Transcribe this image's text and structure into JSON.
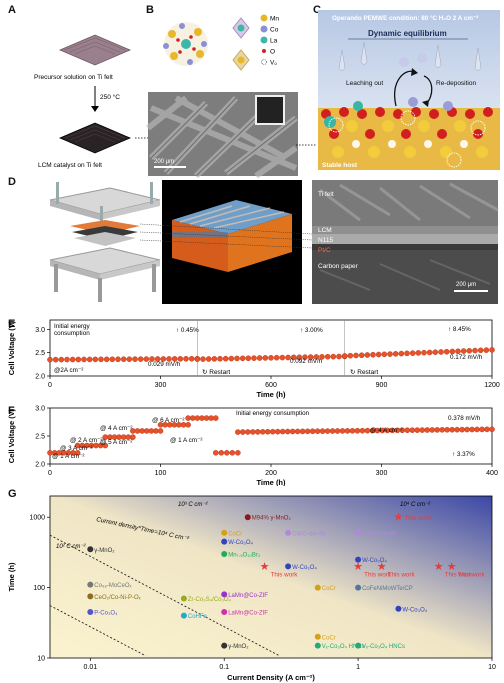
{
  "panels": {
    "A": {
      "label": "A",
      "precursor": "Precursor solution on Ti felt",
      "temp": "250 °C",
      "catalyst": "LCM catalyst on Ti felt"
    },
    "B": {
      "label": "B",
      "legend": [
        "Mn",
        "Co",
        "La",
        "O",
        "Vₒ"
      ],
      "scale": "200 μm"
    },
    "C": {
      "label": "C",
      "condition": "Operando PEMWE condition: 80 °C H₂O 2 A cm⁻²",
      "title": "Dynamic equilibrium",
      "leach": "Leaching out",
      "redep": "Re-deposition",
      "host": "Stable host"
    },
    "D": {
      "label": "D",
      "layers": [
        "Ti felt",
        "LCM",
        "N115",
        "Pt/C",
        "Carbon paper"
      ],
      "scale": "200 μm"
    },
    "E": {
      "label": "E"
    },
    "F": {
      "label": "F"
    },
    "G": {
      "label": "G"
    }
  },
  "chart_data": [
    {
      "type": "line",
      "panel": "E",
      "xlabel": "Time (h)",
      "ylabel": "Cell Voltage (V)",
      "xlim": [
        0,
        1200
      ],
      "ylim": [
        2.0,
        3.2
      ],
      "xticks": [
        "0",
        "300",
        "600",
        "900",
        "1200"
      ],
      "yticks": [
        "2.0",
        "2.5",
        "3.0"
      ],
      "annotations": {
        "initial": "Initial energy consumption",
        "current": "@2A cm⁻²",
        "p1": "0.45%",
        "r1": "0.029 mV/h",
        "p2": "3.00%",
        "r2": "0.092 mV/h",
        "p3": "8.45%",
        "r3": "0.172 mV/h",
        "restart": "Restart"
      },
      "segments": [
        {
          "x": [
            0,
            400
          ],
          "y": [
            2.35,
            2.37
          ]
        },
        {
          "x": [
            400,
            800
          ],
          "y": [
            2.36,
            2.42
          ]
        },
        {
          "x": [
            800,
            1200
          ],
          "y": [
            2.43,
            2.56
          ]
        }
      ]
    },
    {
      "type": "line",
      "panel": "F",
      "xlabel": "Time (h)",
      "ylabel": "Cell Voltage (V)",
      "xlim": [
        0,
        400
      ],
      "ylim": [
        2.0,
        3.0
      ],
      "xticks": [
        "0",
        "100",
        "200",
        "300",
        "400"
      ],
      "yticks": [
        "2.0",
        "2.5",
        "3.0"
      ],
      "annotations": {
        "initial": "Initial energy consumption",
        "steps": [
          "@ 1 A cm⁻²",
          "@ 2 A cm⁻²",
          "@ 3 A cm⁻²",
          "@ 4 A cm⁻²",
          "@ 5 A cm⁻²",
          "@ 6 A cm⁻²",
          "@ 1 A cm⁻²",
          "@ 4 A cm⁻²"
        ],
        "rate": "0.378 mV/h",
        "pct": "3.37%"
      },
      "segments": [
        {
          "x": [
            0,
            25
          ],
          "y": [
            2.2,
            2.2
          ]
        },
        {
          "x": [
            25,
            50
          ],
          "y": [
            2.33,
            2.33
          ]
        },
        {
          "x": [
            50,
            75
          ],
          "y": [
            2.48,
            2.48
          ]
        },
        {
          "x": [
            75,
            100
          ],
          "y": [
            2.59,
            2.59
          ]
        },
        {
          "x": [
            100,
            125
          ],
          "y": [
            2.7,
            2.7
          ]
        },
        {
          "x": [
            125,
            150
          ],
          "y": [
            2.82,
            2.82
          ]
        },
        {
          "x": [
            150,
            170
          ],
          "y": [
            2.2,
            2.2
          ]
        },
        {
          "x": [
            170,
            400
          ],
          "y": [
            2.57,
            2.62
          ]
        }
      ]
    },
    {
      "type": "scatter",
      "panel": "G",
      "xlabel": "Current Density (A cm⁻²)",
      "ylabel": "Time (h)",
      "xscale": "log",
      "yscale": "log",
      "xlim": [
        0.005,
        10
      ],
      "ylim": [
        10,
        2000
      ],
      "xticks": [
        "0.01",
        "0.1",
        "1",
        "10"
      ],
      "yticks": [
        "10",
        "100",
        "1000"
      ],
      "lines": [
        "10² C cm⁻²",
        "10³ C cm⁻²",
        "10⁴ C cm⁻²",
        "Current density*Time=10⁴ C cm⁻²"
      ],
      "this_work_label": "This work",
      "this_work": [
        [
          2,
          1000
        ],
        [
          0.2,
          200
        ],
        [
          1,
          200
        ],
        [
          1.5,
          200
        ],
        [
          4,
          200
        ],
        [
          5,
          200
        ]
      ],
      "points": [
        {
          "label": "γ-MnO₂",
          "x": 0.01,
          "y": 350,
          "color": "#333333"
        },
        {
          "label": "Co₉₈-MoCeOₓ",
          "x": 0.01,
          "y": 110,
          "color": "#777777"
        },
        {
          "label": "CeO₂/Co-Ni-P-Oₓ",
          "x": 0.01,
          "y": 75,
          "color": "#8a6d1f"
        },
        {
          "label": "P-Co₃O₄",
          "x": 0.01,
          "y": 45,
          "color": "#5555cc"
        },
        {
          "label": "Zr-Co₃S₄/Co₃O₄",
          "x": 0.05,
          "y": 70,
          "color": "#99aa22"
        },
        {
          "label": "CoHFe",
          "x": 0.05,
          "y": 40,
          "color": "#22aacc"
        },
        {
          "label": "γ-MnO₂",
          "x": 0.1,
          "y": 15,
          "color": "#333333"
        },
        {
          "label": "CoCr",
          "x": 0.1,
          "y": 600,
          "color": "#d4a017"
        },
        {
          "label": "W-Co₃O₄",
          "x": 0.1,
          "y": 450,
          "color": "#3344bb"
        },
        {
          "label": "Mn₇.₅O₁₀Br₃",
          "x": 0.1,
          "y": 300,
          "color": "#22aa55"
        },
        {
          "label": "M94% γ-MnO₂",
          "x": 0.15,
          "y": 1000,
          "color": "#8b1a1a"
        },
        {
          "label": "LaMn@Co-ZIF",
          "x": 0.1,
          "y": 80,
          "color": "#9933cc"
        },
        {
          "label": "LaMn@Co-ZIF",
          "x": 0.1,
          "y": 45,
          "color": "#cc33aa"
        },
        {
          "label": "CWO-del-48",
          "x": 0.3,
          "y": 600,
          "color": "#b088dd"
        },
        {
          "label": "W-Co₃O₄",
          "x": 0.3,
          "y": 200,
          "color": "#3344bb"
        },
        {
          "label": "CoCr",
          "x": 0.5,
          "y": 100,
          "color": "#d4a017"
        },
        {
          "label": "W-Co₃O₄",
          "x": 1,
          "y": 250,
          "color": "#3344bb"
        },
        {
          "label": "CoFeNiMoWTe/CP",
          "x": 1,
          "y": 100,
          "color": "#557799"
        },
        {
          "label": "CWO-del-48",
          "x": 1,
          "y": 600,
          "color": "#b088dd"
        },
        {
          "label": "W-Co₃O₄",
          "x": 2,
          "y": 50,
          "color": "#3344bb"
        },
        {
          "label": "CoCr",
          "x": 0.5,
          "y": 20,
          "color": "#d4a017"
        },
        {
          "label": "Vₓ-Co₃O₄ HNCs",
          "x": 0.5,
          "y": 15,
          "color": "#22aa77"
        },
        {
          "label": "Vₓ-Co₃O₄ HNCs",
          "x": 1,
          "y": 15,
          "color": "#22aa77"
        }
      ]
    }
  ]
}
